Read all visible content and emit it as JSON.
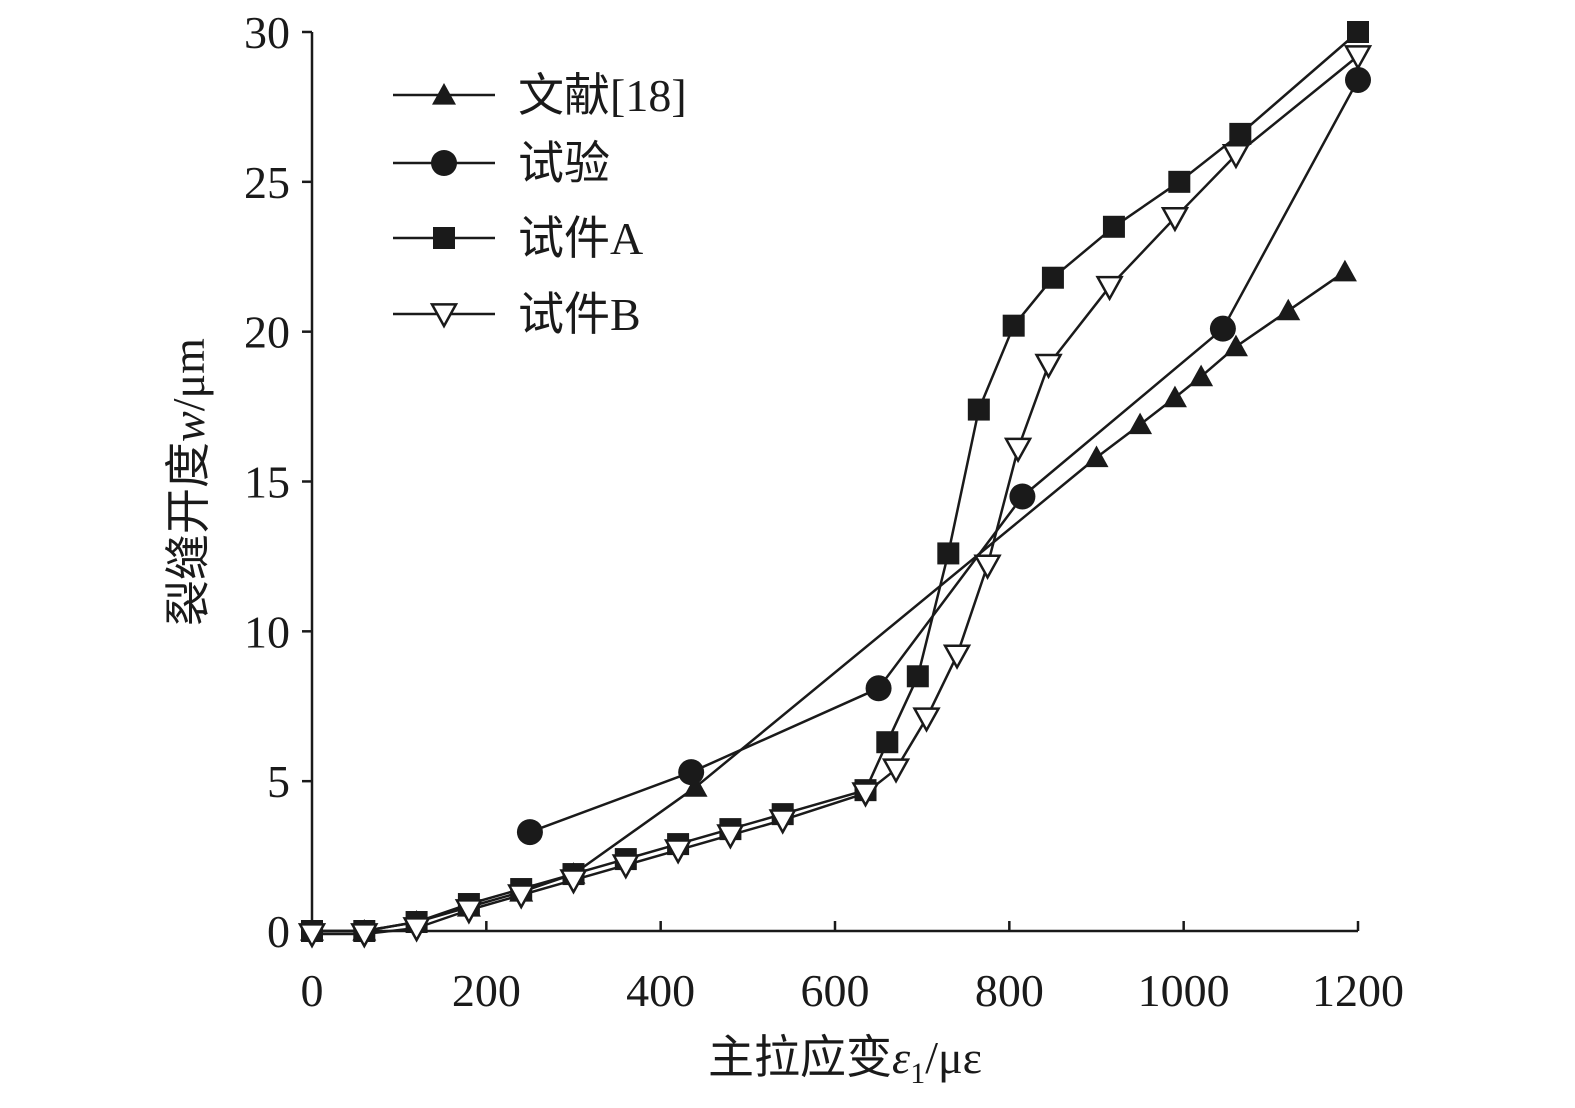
{
  "chart_data": {
    "type": "line",
    "xlabel": "主拉应变",
    "xlabel_symbol": "ε",
    "xlabel_subscript": "1",
    "xlabel_unit": "/με",
    "ylabel": "裂缝开度",
    "ylabel_symbol": "w",
    "ylabel_unit": "/μm",
    "xlim": [
      0,
      1200
    ],
    "ylim": [
      0,
      30
    ],
    "xticks": [
      0,
      200,
      400,
      600,
      800,
      1000,
      1200
    ],
    "yticks": [
      0,
      5,
      10,
      15,
      20,
      25,
      30
    ],
    "grid": false,
    "legend_position": "top-left",
    "series": [
      {
        "name": "文献[18]",
        "marker": "triangle-up",
        "color": "#1a1a1a",
        "points": [
          [
            0,
            0
          ],
          [
            60,
            0
          ],
          [
            120,
            0.3
          ],
          [
            180,
            0.8
          ],
          [
            240,
            1.3
          ],
          [
            300,
            1.9
          ],
          [
            440,
            4.8
          ],
          [
            900,
            15.8
          ],
          [
            950,
            16.9
          ],
          [
            990,
            17.8
          ],
          [
            1020,
            18.5
          ],
          [
            1060,
            19.5
          ],
          [
            1120,
            20.7
          ],
          [
            1185,
            22.0
          ]
        ]
      },
      {
        "name": "试验",
        "marker": "circle",
        "color": "#1a1a1a",
        "points": [
          [
            250,
            3.3
          ],
          [
            435,
            5.3
          ],
          [
            650,
            8.1
          ],
          [
            815,
            14.5
          ],
          [
            1045,
            20.1
          ],
          [
            1200,
            28.4
          ]
        ]
      },
      {
        "name": "试件A",
        "marker": "square",
        "color": "#1a1a1a",
        "points": [
          [
            0,
            0
          ],
          [
            60,
            0
          ],
          [
            120,
            0.3
          ],
          [
            180,
            0.9
          ],
          [
            240,
            1.4
          ],
          [
            300,
            1.9
          ],
          [
            360,
            2.4
          ],
          [
            420,
            2.9
          ],
          [
            480,
            3.4
          ],
          [
            540,
            3.9
          ],
          [
            635,
            4.7
          ],
          [
            660,
            6.3
          ],
          [
            695,
            8.5
          ],
          [
            730,
            12.6
          ],
          [
            765,
            17.4
          ],
          [
            805,
            20.2
          ],
          [
            850,
            21.8
          ],
          [
            920,
            23.5
          ],
          [
            995,
            25.0
          ],
          [
            1065,
            26.6
          ],
          [
            1200,
            30.0
          ]
        ]
      },
      {
        "name": "试件B",
        "marker": "triangle-down",
        "color": "#1a1a1a",
        "points": [
          [
            0,
            -0.1
          ],
          [
            60,
            -0.1
          ],
          [
            120,
            0.1
          ],
          [
            180,
            0.7
          ],
          [
            240,
            1.2
          ],
          [
            300,
            1.7
          ],
          [
            360,
            2.2
          ],
          [
            420,
            2.7
          ],
          [
            480,
            3.2
          ],
          [
            540,
            3.7
          ],
          [
            635,
            4.6
          ],
          [
            670,
            5.4
          ],
          [
            705,
            7.1
          ],
          [
            740,
            9.2
          ],
          [
            775,
            12.2
          ],
          [
            810,
            16.1
          ],
          [
            845,
            18.9
          ],
          [
            915,
            21.5
          ],
          [
            990,
            23.8
          ],
          [
            1060,
            25.9
          ],
          [
            1200,
            29.2
          ]
        ]
      }
    ]
  }
}
